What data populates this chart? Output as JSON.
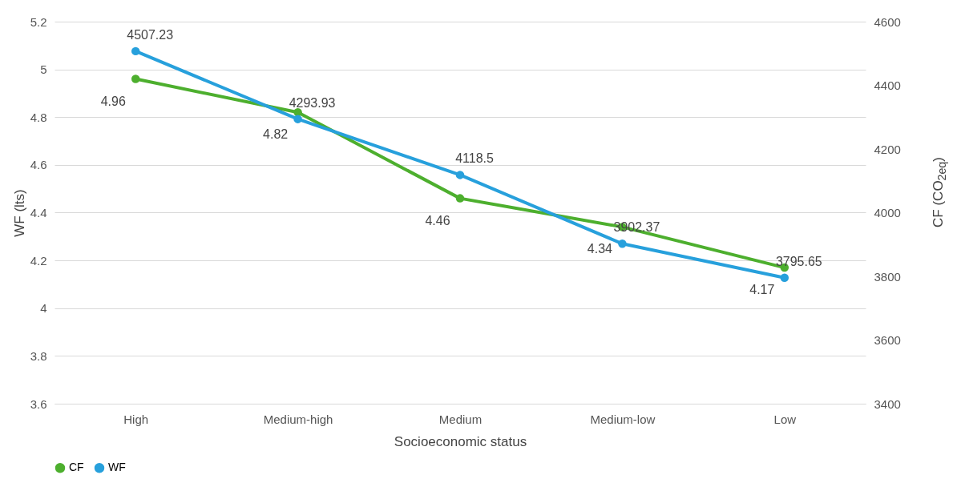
{
  "chart_data": {
    "type": "line",
    "xlabel": "Socioeconomic status",
    "ylabel": "WF (lts)",
    "y2label": "CF (CO$_{2eq}$)",
    "categories": [
      "High",
      "Medium-high",
      "Medium",
      "Medium-low",
      "Low"
    ],
    "series": [
      {
        "name": "CF",
        "color": "#4daf2e",
        "values": [
          4.96,
          4.82,
          4.46,
          4.34,
          4.17
        ]
      },
      {
        "name": "WF",
        "color": "#27a0dc",
        "values": [
          4507.23,
          4293.93,
          4118.5,
          3902.37,
          3795.65
        ],
        "axis": "y2"
      }
    ],
    "ylim": [
      3.6,
      5.2
    ],
    "yticks": [
      3.6,
      3.8,
      4,
      4.2,
      4.4,
      4.6,
      4.8,
      5,
      5.2
    ],
    "y2lim": [
      3400,
      4600
    ],
    "y2ticks": [
      3400,
      3600,
      3800,
      4000,
      4200,
      4400,
      4600
    ],
    "grid": "y",
    "legend": "bottom",
    "marker": "circle",
    "line_style": "solid",
    "data_labels": true
  }
}
